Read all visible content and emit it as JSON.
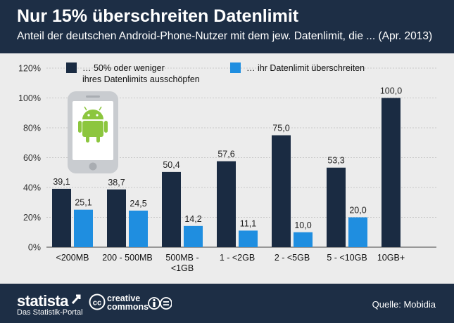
{
  "header": {
    "title": "Nur 15% überschreiten Datenlimit",
    "subtitle": "Anteil der deutschen Android-Phone-Nutzer mit dem jew. Datenlimit, die ... (Apr. 2013)"
  },
  "footer": {
    "brand": "statista",
    "brand_sub": "Das Statistik-Portal",
    "cc_line1": "creative",
    "cc_line2": "commons",
    "cc_mark": "cc",
    "source": "Quelle: Mobidia"
  },
  "colors": {
    "header_bg": "#1d2e45",
    "series_dark": "#1a2b42",
    "series_light": "#1f8ee0",
    "background": "#ececec",
    "android_green": "#8cc63e"
  },
  "icons": [
    "android-phone-icon",
    "statista-icon",
    "creative-commons-icon",
    "attribution-icon",
    "noderivs-icon"
  ],
  "chart_data": {
    "type": "bar",
    "categories": [
      [
        "<200MB"
      ],
      [
        "200 - 500MB"
      ],
      [
        "500MB -",
        "<1GB"
      ],
      [
        "1 - <2GB"
      ],
      [
        "2 - <5GB"
      ],
      [
        "5 - <10GB"
      ],
      [
        "10GB+"
      ]
    ],
    "series": [
      {
        "name_lines": [
          "… 50% oder weniger",
          "ihres Datenlimits ausschöpfen"
        ],
        "values": [
          39.1,
          38.7,
          50.4,
          57.6,
          75.0,
          53.3,
          100.0
        ],
        "labels": [
          "39,1",
          "38,7",
          "50,4",
          "57,6",
          "75,0",
          "53,3",
          "100,0"
        ]
      },
      {
        "name_lines": [
          "… ihr Datenlimit überschreiten"
        ],
        "values": [
          25.1,
          24.5,
          14.2,
          11.1,
          10.0,
          20.0,
          null
        ],
        "labels": [
          "25,1",
          "24,5",
          "14,2",
          "11,1",
          "10,0",
          "20,0",
          null
        ]
      }
    ],
    "yticks": [
      "0%",
      "20%",
      "40%",
      "60%",
      "80%",
      "100%",
      "120%"
    ],
    "ylim": [
      0,
      120
    ],
    "grid": true,
    "legend": "top"
  }
}
